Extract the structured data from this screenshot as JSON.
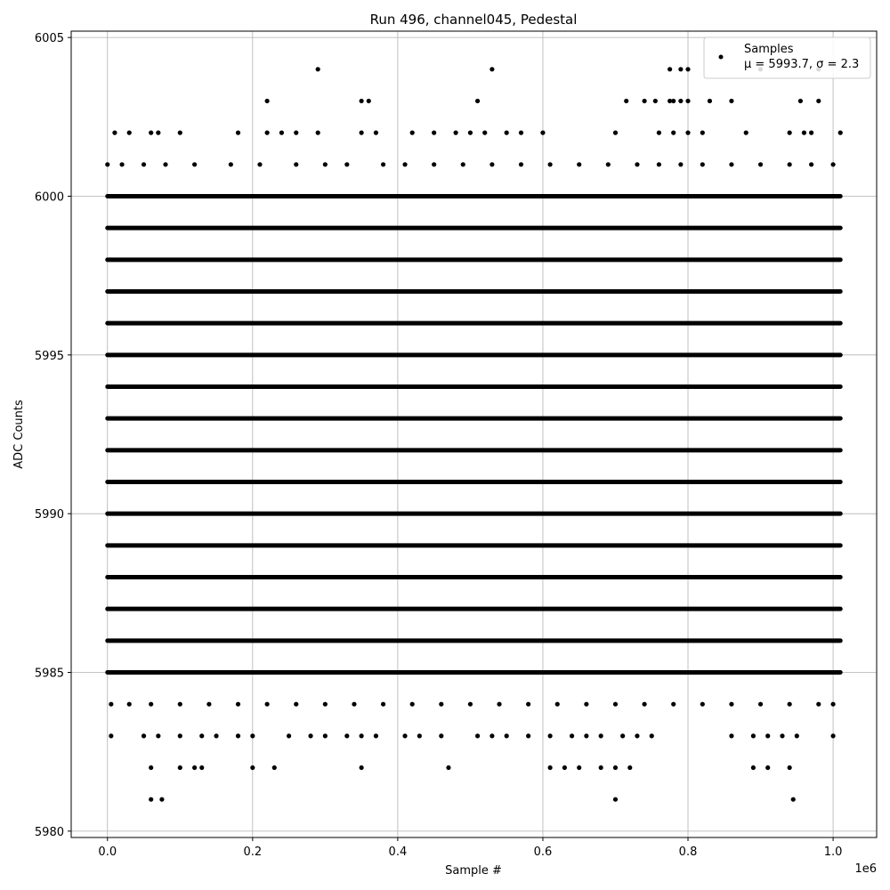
{
  "chart_data": {
    "type": "scatter",
    "title": "Run 496, channel045, Pedestal",
    "xlabel": "Sample #",
    "ylabel": "ADC Counts",
    "x_offset_label": "1e6",
    "xlim": [
      -50000,
      1060000
    ],
    "ylim": [
      5979.8,
      6005.2
    ],
    "x_ticks": [
      0.0,
      0.2,
      0.4,
      0.6,
      0.8,
      1.0
    ],
    "x_tick_labels": [
      "0.0",
      "0.2",
      "0.4",
      "0.6",
      "0.8",
      "1.0"
    ],
    "y_ticks": [
      5980,
      5985,
      5990,
      5995,
      6000,
      6005
    ],
    "y_tick_labels": [
      "5980",
      "5985",
      "5990",
      "5995",
      "6000",
      "6005"
    ],
    "grid": true,
    "legend_position": "top-right",
    "marker_color": "#000000",
    "series": [
      {
        "name": "Samples",
        "stats_label": "μ = 5993.7, σ = 2.3",
        "x_range": [
          0,
          1010000
        ],
        "dense_bands": [
          5985,
          5986,
          5987,
          5988,
          5989,
          5990,
          5991,
          5992,
          5993,
          5994,
          5995,
          5996,
          5997,
          5998,
          5999,
          6000
        ],
        "sparse_points": {
          "6004": [
            0.29,
            0.53,
            0.775,
            0.79,
            0.8,
            0.9,
            0.98
          ],
          "6003": [
            0.22,
            0.35,
            0.36,
            0.51,
            0.715,
            0.74,
            0.755,
            0.775,
            0.78,
            0.79,
            0.8,
            0.83,
            0.86,
            0.955,
            0.98
          ],
          "6002": [
            0.01,
            0.03,
            0.06,
            0.07,
            0.1,
            0.18,
            0.22,
            0.24,
            0.26,
            0.29,
            0.35,
            0.37,
            0.42,
            0.45,
            0.48,
            0.5,
            0.52,
            0.55,
            0.57,
            0.6,
            0.7,
            0.76,
            0.78,
            0.8,
            0.82,
            0.88,
            0.94,
            0.96,
            0.97,
            1.01
          ],
          "6001": [
            0.0,
            0.02,
            0.05,
            0.08,
            0.12,
            0.17,
            0.21,
            0.26,
            0.3,
            0.33,
            0.38,
            0.41,
            0.45,
            0.49,
            0.53,
            0.57,
            0.61,
            0.65,
            0.69,
            0.73,
            0.76,
            0.79,
            0.82,
            0.86,
            0.9,
            0.94,
            0.97,
            1.0
          ],
          "5984": [
            0.005,
            0.03,
            0.06,
            0.1,
            0.14,
            0.18,
            0.22,
            0.26,
            0.3,
            0.34,
            0.38,
            0.42,
            0.46,
            0.5,
            0.54,
            0.58,
            0.62,
            0.66,
            0.7,
            0.74,
            0.78,
            0.82,
            0.86,
            0.9,
            0.94,
            0.98,
            1.0
          ],
          "5983": [
            0.005,
            0.05,
            0.07,
            0.1,
            0.13,
            0.15,
            0.18,
            0.2,
            0.25,
            0.28,
            0.3,
            0.33,
            0.35,
            0.37,
            0.41,
            0.43,
            0.46,
            0.51,
            0.53,
            0.55,
            0.58,
            0.61,
            0.64,
            0.66,
            0.68,
            0.71,
            0.73,
            0.75,
            0.86,
            0.89,
            0.91,
            0.93,
            0.95,
            1.0
          ],
          "5982": [
            0.06,
            0.1,
            0.12,
            0.13,
            0.2,
            0.23,
            0.35,
            0.47,
            0.61,
            0.63,
            0.65,
            0.68,
            0.7,
            0.72,
            0.89,
            0.91,
            0.94
          ],
          "5981": [
            0.06,
            0.075,
            0.7,
            0.945
          ]
        }
      }
    ]
  }
}
